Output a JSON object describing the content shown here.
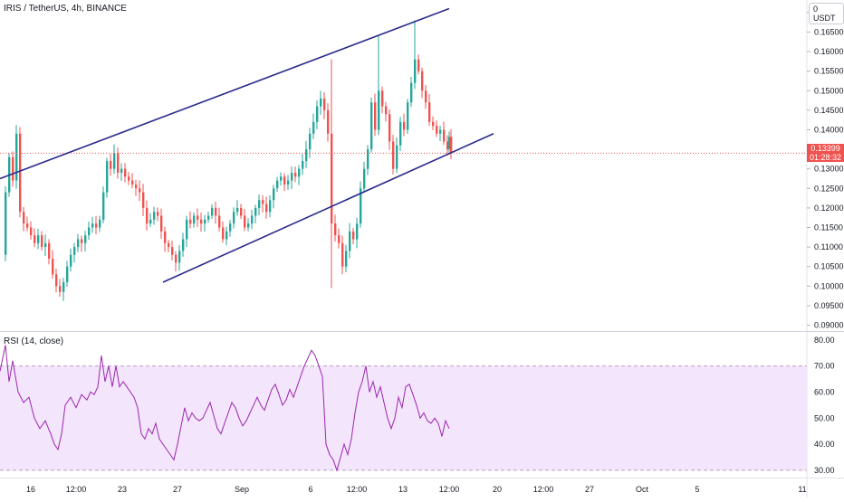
{
  "header": {
    "title": "IRIS / TetherUS, 4h, BINANCE",
    "currency_button": "USDT",
    "currency_caret": "0"
  },
  "price_tag": {
    "price": "0.13399",
    "countdown": "01:28:32",
    "color": "#ef5350"
  },
  "rsi_panel": {
    "label": "RSI (14, close)",
    "line_color": "#9c27b0",
    "band_fill": "#f3e5fb"
  },
  "colors": {
    "up": "#26a69a",
    "down": "#ef5350",
    "trendline": "#2b2c8c",
    "axis_text": "#131722"
  },
  "chart_data": [
    {
      "type": "candlestick",
      "title": "IRIS / TetherUS, 4h, BINANCE",
      "x_ticks": [
        "16",
        "12:00",
        "23",
        "27",
        "Sep",
        "6",
        "12:00",
        "13",
        "12:00",
        "20",
        "12:00",
        "27",
        "Oct",
        "5",
        "11"
      ],
      "y_ticks": [
        "0.17000",
        "0.16500",
        "0.16000",
        "0.15500",
        "0.15000",
        "0.14500",
        "0.14000",
        "0.13500",
        "0.13000",
        "0.12500",
        "0.12000",
        "0.11500",
        "0.11000",
        "0.10500",
        "0.10000",
        "0.09500",
        "0.09000"
      ],
      "ylim": [
        0.0885,
        0.1732
      ],
      "last_price": 0.13399,
      "price_path": [
        [
          0,
          0.108
        ],
        [
          4,
          0.124
        ],
        [
          8,
          0.133
        ],
        [
          12,
          0.127
        ],
        [
          16,
          0.139
        ],
        [
          20,
          0.119
        ],
        [
          24,
          0.116
        ],
        [
          28,
          0.115
        ],
        [
          32,
          0.113
        ],
        [
          36,
          0.111
        ],
        [
          40,
          0.113
        ],
        [
          44,
          0.11
        ],
        [
          48,
          0.111
        ],
        [
          52,
          0.107
        ],
        [
          56,
          0.103
        ],
        [
          60,
          0.1
        ],
        [
          64,
          0.0985
        ],
        [
          68,
          0.101
        ],
        [
          72,
          0.105
        ],
        [
          76,
          0.108
        ],
        [
          80,
          0.11
        ],
        [
          84,
          0.112
        ],
        [
          88,
          0.111
        ],
        [
          92,
          0.113
        ],
        [
          96,
          0.115
        ],
        [
          100,
          0.116
        ],
        [
          104,
          0.115
        ],
        [
          108,
          0.117
        ],
        [
          112,
          0.124
        ],
        [
          116,
          0.132
        ],
        [
          120,
          0.13
        ],
        [
          124,
          0.134
        ],
        [
          128,
          0.129
        ],
        [
          132,
          0.13
        ],
        [
          136,
          0.128
        ],
        [
          140,
          0.127
        ],
        [
          144,
          0.126
        ],
        [
          148,
          0.125
        ],
        [
          152,
          0.124
        ],
        [
          156,
          0.12
        ],
        [
          160,
          0.116
        ],
        [
          164,
          0.117
        ],
        [
          168,
          0.119
        ],
        [
          172,
          0.118
        ],
        [
          176,
          0.114
        ],
        [
          180,
          0.111
        ],
        [
          184,
          0.11
        ],
        [
          188,
          0.108
        ],
        [
          192,
          0.106
        ],
        [
          196,
          0.109
        ],
        [
          200,
          0.112
        ],
        [
          204,
          0.117
        ],
        [
          208,
          0.116
        ],
        [
          212,
          0.118
        ],
        [
          216,
          0.117
        ],
        [
          220,
          0.116
        ],
        [
          224,
          0.117
        ],
        [
          228,
          0.118
        ],
        [
          232,
          0.12
        ],
        [
          236,
          0.118
        ],
        [
          240,
          0.115
        ],
        [
          244,
          0.112
        ],
        [
          248,
          0.114
        ],
        [
          252,
          0.116
        ],
        [
          256,
          0.119
        ],
        [
          260,
          0.12
        ],
        [
          264,
          0.118
        ],
        [
          268,
          0.115
        ],
        [
          272,
          0.116
        ],
        [
          276,
          0.118
        ],
        [
          280,
          0.12
        ],
        [
          284,
          0.122
        ],
        [
          288,
          0.121
        ],
        [
          292,
          0.119
        ],
        [
          296,
          0.122
        ],
        [
          300,
          0.125
        ],
        [
          304,
          0.127
        ],
        [
          308,
          0.128
        ],
        [
          312,
          0.126
        ],
        [
          316,
          0.127
        ],
        [
          320,
          0.129
        ],
        [
          324,
          0.128
        ],
        [
          328,
          0.13
        ],
        [
          332,
          0.132
        ],
        [
          336,
          0.135
        ],
        [
          340,
          0.139
        ],
        [
          344,
          0.142
        ],
        [
          348,
          0.146
        ],
        [
          352,
          0.148
        ],
        [
          356,
          0.145
        ],
        [
          360,
          0.139
        ],
        [
          364,
          0.116
        ],
        [
          368,
          0.113
        ],
        [
          372,
          0.111
        ],
        [
          376,
          0.105
        ],
        [
          380,
          0.109
        ],
        [
          384,
          0.114
        ],
        [
          388,
          0.112
        ],
        [
          392,
          0.116
        ],
        [
          396,
          0.125
        ],
        [
          400,
          0.13
        ],
        [
          404,
          0.135
        ],
        [
          408,
          0.147
        ],
        [
          412,
          0.14
        ],
        [
          416,
          0.15
        ],
        [
          420,
          0.146
        ],
        [
          424,
          0.144
        ],
        [
          428,
          0.137
        ],
        [
          432,
          0.13
        ],
        [
          436,
          0.136
        ],
        [
          440,
          0.142
        ],
        [
          444,
          0.14
        ],
        [
          448,
          0.147
        ],
        [
          452,
          0.152
        ],
        [
          456,
          0.158
        ],
        [
          460,
          0.155
        ],
        [
          464,
          0.15
        ],
        [
          468,
          0.147
        ],
        [
          472,
          0.142
        ],
        [
          476,
          0.141
        ],
        [
          480,
          0.139
        ],
        [
          484,
          0.14
        ],
        [
          488,
          0.137
        ],
        [
          492,
          0.135
        ],
        [
          494,
          0.1382
        ],
        [
          496,
          0.134
        ]
      ],
      "trendlines": [
        {
          "label": "upper channel",
          "from": [
            0,
            0.1275
          ],
          "to": [
            496,
            0.171
          ]
        },
        {
          "label": "lower channel",
          "from": [
            180,
            0.101
          ],
          "to": [
            545,
            0.139
          ]
        }
      ]
    },
    {
      "type": "line",
      "title": "RSI (14, close)",
      "y_ticks": [
        "80.00",
        "70.00",
        "60.00",
        "50.00",
        "40.00",
        "30.00"
      ],
      "ylim": [
        27.2,
        82.7
      ],
      "band": [
        30,
        70
      ],
      "series": [
        {
          "values": [
            [
              0,
              68
            ],
            [
              6,
              78
            ],
            [
              10,
              64
            ],
            [
              14,
              72
            ],
            [
              20,
              60
            ],
            [
              26,
              56
            ],
            [
              32,
              58
            ],
            [
              38,
              50
            ],
            [
              44,
              46
            ],
            [
              50,
              49
            ],
            [
              56,
              44
            ],
            [
              60,
              40
            ],
            [
              64,
              38
            ],
            [
              68,
              44
            ],
            [
              72,
              55
            ],
            [
              78,
              58
            ],
            [
              84,
              54
            ],
            [
              90,
              59
            ],
            [
              96,
              57
            ],
            [
              100,
              60
            ],
            [
              104,
              59
            ],
            [
              108,
              62
            ],
            [
              112,
              74
            ],
            [
              116,
              64
            ],
            [
              120,
              70
            ],
            [
              124,
              62
            ],
            [
              128,
              70
            ],
            [
              132,
              62
            ],
            [
              136,
              64
            ],
            [
              140,
              62
            ],
            [
              144,
              60
            ],
            [
              148,
              58
            ],
            [
              152,
              54
            ],
            [
              156,
              44
            ],
            [
              160,
              42
            ],
            [
              164,
              46
            ],
            [
              168,
              44
            ],
            [
              172,
              48
            ],
            [
              176,
              42
            ],
            [
              180,
              40
            ],
            [
              184,
              38
            ],
            [
              188,
              36
            ],
            [
              192,
              34
            ],
            [
              196,
              40
            ],
            [
              200,
              47
            ],
            [
              204,
              54
            ],
            [
              208,
              49
            ],
            [
              212,
              52
            ],
            [
              216,
              50
            ],
            [
              220,
              49
            ],
            [
              224,
              50
            ],
            [
              228,
              53
            ],
            [
              232,
              56
            ],
            [
              236,
              51
            ],
            [
              240,
              46
            ],
            [
              244,
              44
            ],
            [
              248,
              48
            ],
            [
              252,
              52
            ],
            [
              256,
              56
            ],
            [
              260,
              54
            ],
            [
              264,
              50
            ],
            [
              268,
              47
            ],
            [
              272,
              49
            ],
            [
              276,
              52
            ],
            [
              280,
              55
            ],
            [
              284,
              58
            ],
            [
              288,
              55
            ],
            [
              292,
              53
            ],
            [
              296,
              57
            ],
            [
              300,
              61
            ],
            [
              304,
              63
            ],
            [
              308,
              59
            ],
            [
              312,
              55
            ],
            [
              316,
              57
            ],
            [
              320,
              61
            ],
            [
              324,
              58
            ],
            [
              328,
              62
            ],
            [
              332,
              66
            ],
            [
              336,
              70
            ],
            [
              340,
              73
            ],
            [
              344,
              76
            ],
            [
              348,
              74
            ],
            [
              352,
              70
            ],
            [
              356,
              66
            ],
            [
              360,
              40
            ],
            [
              364,
              36
            ],
            [
              368,
              34
            ],
            [
              372,
              30
            ],
            [
              376,
              35
            ],
            [
              380,
              40
            ],
            [
              384,
              36
            ],
            [
              388,
              42
            ],
            [
              392,
              52
            ],
            [
              396,
              60
            ],
            [
              400,
              64
            ],
            [
              404,
              70
            ],
            [
              408,
              60
            ],
            [
              412,
              64
            ],
            [
              416,
              58
            ],
            [
              420,
              62
            ],
            [
              424,
              56
            ],
            [
              428,
              50
            ],
            [
              432,
              46
            ],
            [
              436,
              50
            ],
            [
              440,
              58
            ],
            [
              444,
              54
            ],
            [
              448,
              62
            ],
            [
              452,
              63
            ],
            [
              456,
              59
            ],
            [
              460,
              55
            ],
            [
              464,
              50
            ],
            [
              468,
              52
            ],
            [
              472,
              49
            ],
            [
              476,
              48
            ],
            [
              480,
              50
            ],
            [
              484,
              48
            ],
            [
              488,
              43
            ],
            [
              492,
              49
            ],
            [
              496,
              46
            ]
          ]
        }
      ]
    }
  ]
}
